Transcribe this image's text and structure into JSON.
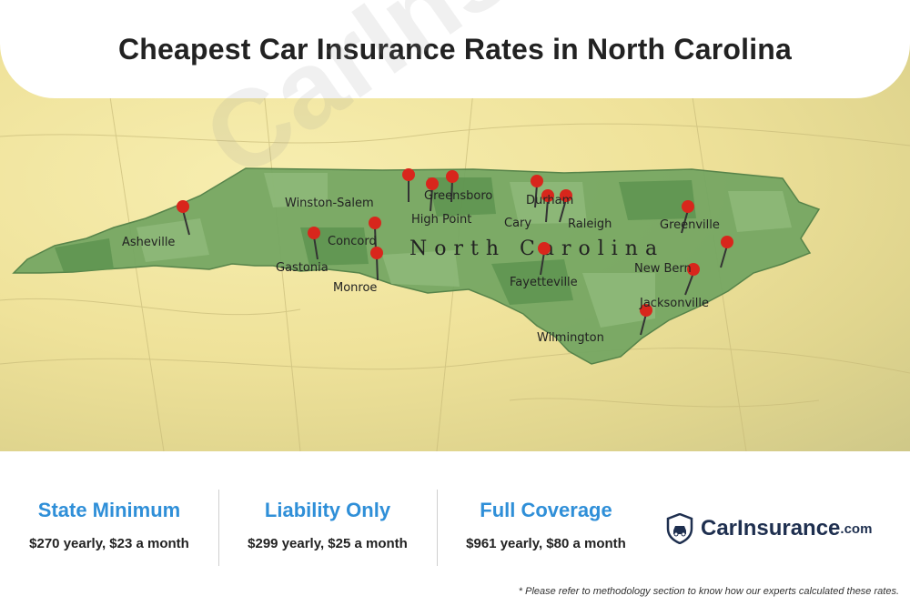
{
  "title": "Cheapest Car Insurance Rates in North Carolina",
  "map": {
    "state_label": "North Carolina",
    "cities": [
      {
        "name": "Winston-Salem"
      },
      {
        "name": "Greensboro"
      },
      {
        "name": "High Point"
      },
      {
        "name": "Durham"
      },
      {
        "name": "Cary"
      },
      {
        "name": "Raleigh"
      },
      {
        "name": "Greenville"
      },
      {
        "name": "Asheville"
      },
      {
        "name": "Concord"
      },
      {
        "name": "Gastonia"
      },
      {
        "name": "Monroe"
      },
      {
        "name": "Fayetteville"
      },
      {
        "name": "New Bern"
      },
      {
        "name": "Jacksonville"
      },
      {
        "name": "Wilmington"
      }
    ],
    "pin_color": "#d8261c",
    "state_color": "#6e9e5c"
  },
  "stats": [
    {
      "label": "State Minimum",
      "value": "$270 yearly, $23 a month"
    },
    {
      "label": "Liability Only",
      "value": "$299 yearly, $25 a month"
    },
    {
      "label": "Full Coverage",
      "value": "$961 yearly, $80 a month"
    }
  ],
  "brand": {
    "name": "CarInsurance",
    "tld": ".com",
    "icon": "shield-car-icon"
  },
  "watermark": "CarInsurance.com",
  "footnote": "* Please refer to methodology section to know how our experts calculated these rates.",
  "accent_color": "#2f8fd8"
}
